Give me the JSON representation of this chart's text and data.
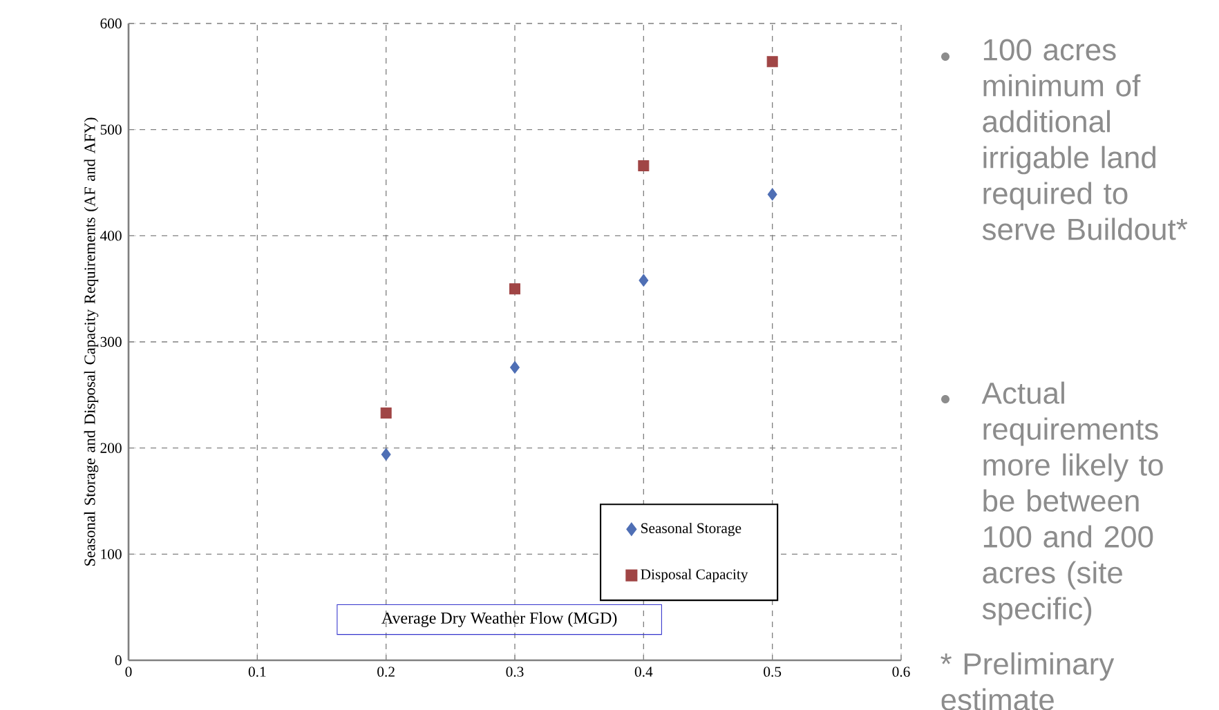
{
  "chart_data": {
    "type": "scatter",
    "xlabel": "Average Dry Weather Flow (MGD)",
    "ylabel": "Seasonal Storage and Disposal Capacity Requirements (AF and AFY)",
    "x": [
      0.2,
      0.3,
      0.4,
      0.5
    ],
    "series": [
      {
        "name": "Seasonal Storage",
        "color": "#4f6fb5",
        "marker": "diamond",
        "values": [
          194,
          276,
          358,
          439
        ]
      },
      {
        "name": "Disposal Capacity",
        "color": "#a04545",
        "marker": "square",
        "values": [
          233,
          350,
          466,
          564
        ]
      }
    ],
    "xlim": [
      0,
      0.6
    ],
    "xticks": [
      0,
      0.1,
      0.2,
      0.3,
      0.4,
      0.5,
      0.6
    ],
    "ylim": [
      0,
      600
    ],
    "yticks": [
      0,
      100,
      200,
      300,
      400,
      500,
      600
    ],
    "grid": true,
    "legend": "bottom right",
    "annotations": [
      "100 acres minimum of additional irrigable land required to serve Buildout*",
      "Actual requirements more likely to be between 100 and 200 acres  (site specific)",
      "* Preliminary estimate"
    ]
  }
}
